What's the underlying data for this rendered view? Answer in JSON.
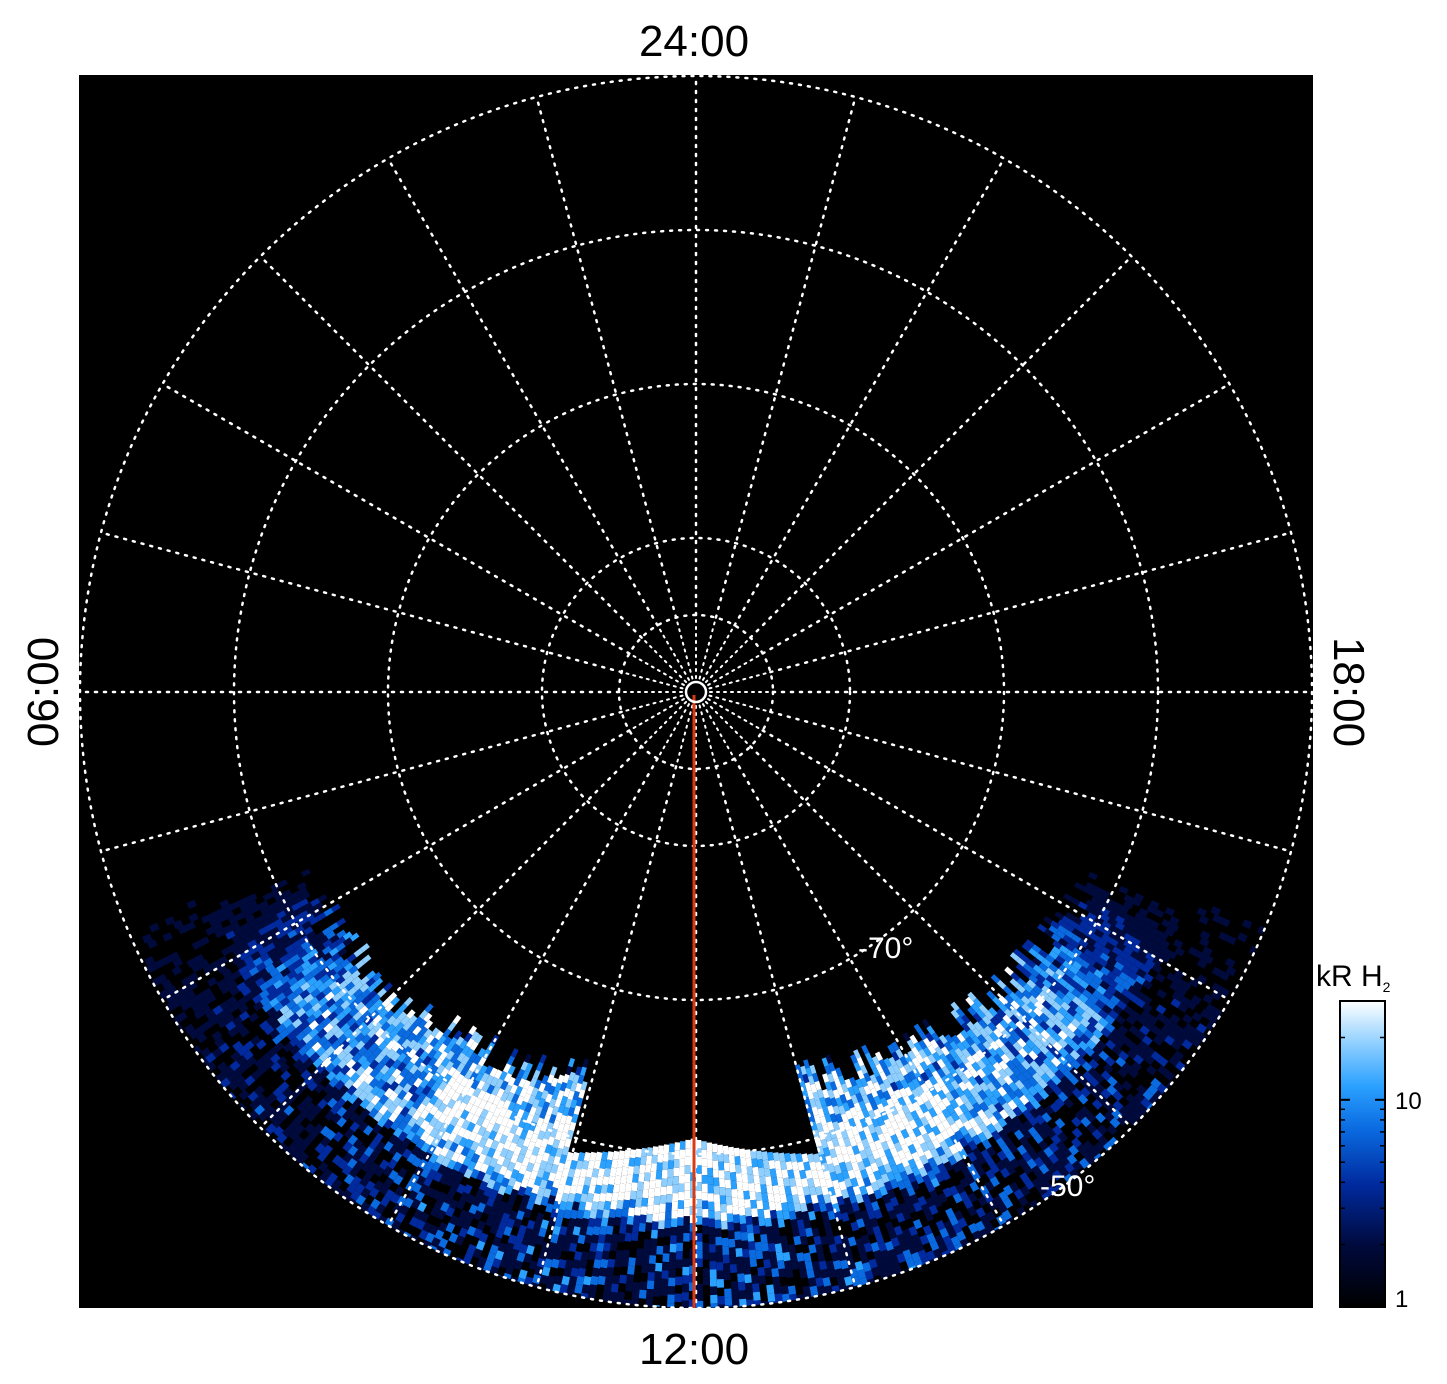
{
  "chart_data": {
    "type": "heatmap",
    "projection": "polar",
    "title": "",
    "local_time_labels": {
      "top": "24:00",
      "left": "06:00",
      "right": "18:00",
      "bottom": "12:00"
    },
    "latitude_labels": [
      "-70°",
      "-50°"
    ],
    "latitude_label_values": [
      -70,
      -50
    ],
    "latitude_circles": [
      -85,
      -80,
      -70,
      -60,
      -50
    ],
    "pole": -90,
    "outer_latitude": -50,
    "local_time_spokes_hours": 1,
    "highlight_meridian_local_time": "12:00",
    "colorbar": {
      "title": "kR H",
      "title_subscript": "2",
      "scale": "log",
      "range": [
        1,
        30
      ],
      "ticks": [
        1,
        10
      ],
      "tick_labels": [
        "1",
        "10"
      ],
      "colors": [
        "#000000",
        "#000a3c",
        "#002a9e",
        "#0a6ae0",
        "#2aa0ff",
        "#8ecfff",
        "#ffffff"
      ]
    },
    "emission": {
      "description_free": true,
      "local_time_coverage": [
        "07:30",
        "16:30"
      ],
      "latitude_coverage": [
        -68,
        -50
      ],
      "bright_band_latitude": [
        -64,
        -56
      ],
      "peak_local_time": "12:00",
      "peak_kR": 30
    }
  }
}
